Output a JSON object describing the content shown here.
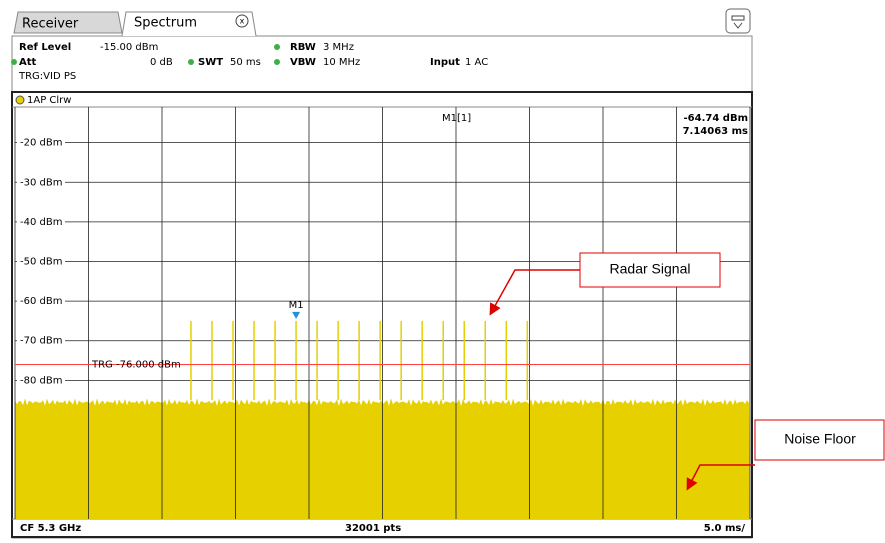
{
  "tabs": [
    "Receiver",
    "Spectrum"
  ],
  "tab_close": "x",
  "header": {
    "ref_level": "Ref Level",
    "ref_level_value": "-15.00 dBm",
    "rbw": "RBW",
    "rbw_value": "3 MHz",
    "att": "Att",
    "att_value": "0 dB",
    "swt": "SWT",
    "swt_value": "50 ms",
    "vbw": "VBW",
    "vbw_value": "10 MHz",
    "input": "Input",
    "input_value": "1 AC",
    "trigger": "TRG:VID PS"
  },
  "trace_label": "1AP Clrw",
  "chart_data": {
    "type": "pulse",
    "xlim": [
      0,
      50
    ],
    "ylim": [
      -115,
      -11
    ],
    "yticks": [
      {
        "value": -20,
        "label": "-20 dBm"
      },
      {
        "value": -30,
        "label": "-30 dBm"
      },
      {
        "value": -40,
        "label": "-40 dBm"
      },
      {
        "value": -50,
        "label": "-50 dBm"
      },
      {
        "value": -60,
        "label": "-60 dBm"
      },
      {
        "value": -70,
        "label": "-70 dBm"
      },
      {
        "value": -80,
        "label": "-80 dBm"
      }
    ],
    "xticks": [
      0,
      5,
      10,
      15,
      20,
      25,
      30,
      35,
      40,
      45,
      50
    ],
    "grid": true,
    "color": "#e6d000",
    "x": [
      11.97,
      13.4,
      14.83,
      16.26,
      17.69,
      19.12,
      20.55,
      21.98,
      23.41,
      24.84,
      26.27,
      27.7,
      29.13,
      30.56,
      31.99,
      33.42,
      34.85
    ],
    "values": [
      -65,
      -65,
      -65,
      -65,
      -65,
      -65,
      -65,
      -65,
      -65,
      -65,
      -65,
      -65,
      -65,
      -65,
      -65,
      -65,
      -65
    ],
    "noise_floor": -85,
    "trigger": {
      "value": -76,
      "label": "TRG -76.000 dBm",
      "color": "#ff4040"
    },
    "marker": {
      "label": "M1",
      "readout": "M1[1]",
      "x": 19.12,
      "value": -64.74,
      "value_label": "-64.74 dBm",
      "time_label": "7.14063 ms",
      "color": "#1f8fdf"
    },
    "annotations": [
      "Radar Signal",
      "Noise Floor"
    ]
  },
  "footer": {
    "center_frequency": "CF 5.3 GHz",
    "points": "32001 pts",
    "span": "5.0 ms/"
  }
}
